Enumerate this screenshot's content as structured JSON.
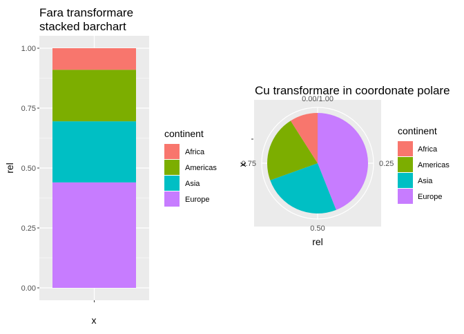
{
  "chart_data": [
    {
      "type": "bar",
      "stacked": true,
      "title_lines": [
        "Fara transformare",
        "stacked barchart"
      ],
      "xlabel": "x",
      "ylabel": "rel",
      "ylim": [
        0,
        1
      ],
      "yticks": [
        "0.00",
        "0.25",
        "0.50",
        "0.75",
        "1.00"
      ],
      "categories": [
        ""
      ],
      "series": [
        {
          "name": "Africa",
          "values": [
            0.09
          ]
        },
        {
          "name": "Americas",
          "values": [
            0.215
          ]
        },
        {
          "name": "Asia",
          "values": [
            0.255
          ]
        },
        {
          "name": "Europe",
          "values": [
            0.44
          ]
        }
      ],
      "grid": true,
      "legend": {
        "title": "continent",
        "position": "right"
      }
    },
    {
      "type": "pie",
      "coord": "polar",
      "title": "Cu transformare in coordonate polare",
      "xlabel": "rel",
      "ylabel": "x",
      "theta_ticks": [
        "0.00/1.00",
        "0.25",
        "0.50",
        "0.75"
      ],
      "series": [
        {
          "name": "Africa",
          "value": 0.09
        },
        {
          "name": "Americas",
          "value": 0.215
        },
        {
          "name": "Asia",
          "value": 0.255
        },
        {
          "name": "Europe",
          "value": 0.44
        }
      ],
      "legend": {
        "title": "continent",
        "position": "right"
      }
    }
  ],
  "colors": {
    "Africa": "#F8766D",
    "Americas": "#7CAE00",
    "Asia": "#00BFC4",
    "Europe": "#C77CFF",
    "panel": "#EBEBEB",
    "grid": "#FFFFFF"
  }
}
